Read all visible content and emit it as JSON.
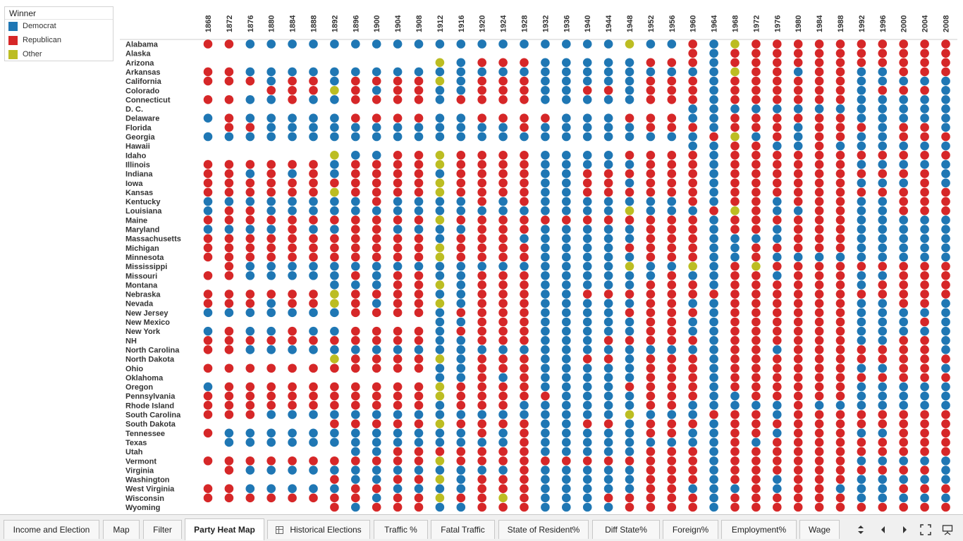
{
  "legend": {
    "title": "Winner",
    "items": [
      {
        "label": "Democrat",
        "color": "#1f77b4"
      },
      {
        "label": "Republican",
        "color": "#d62728"
      },
      {
        "label": "Other",
        "color": "#bcbd22"
      }
    ]
  },
  "chart_data": {
    "type": "heatmap",
    "years": [
      "1868",
      "1872",
      "1876",
      "1880",
      "1884",
      "1888",
      "1892",
      "1896",
      "1900",
      "1904",
      "1908",
      "1912",
      "1916",
      "1920",
      "1924",
      "1928",
      "1932",
      "1936",
      "1940",
      "1944",
      "1948",
      "1952",
      "1956",
      "1960",
      "1964",
      "1968",
      "1972",
      "1976",
      "1980",
      "1984",
      "1988",
      "1992",
      "1996",
      "2000",
      "2004",
      "2008"
    ],
    "states": [
      "Alabama",
      "Alaska",
      "Arizona",
      "Arkansas",
      "California",
      "Colorado",
      "Connecticut",
      "D. C.",
      "Delaware",
      "Florida",
      "Georgia",
      "Hawaii",
      "Idaho",
      "Illinois",
      "Indiana",
      "Iowa",
      "Kansas",
      "Kentucky",
      "Louisiana",
      "Maine",
      "Maryland",
      "Massachusetts",
      "Michigan",
      "Minnesota",
      "Mississippi",
      "Missouri",
      "Montana",
      "Nebraska",
      "Nevada",
      "New Jersey",
      "New Mexico",
      "New York",
      "NH",
      "North Carolina",
      "North Dakota",
      "Ohio",
      "Oklahoma",
      "Oregon",
      "Pennsylvania",
      "Rhode Island",
      "South Carolina",
      "South Dakota",
      "Tennessee",
      "Texas",
      "Utah",
      "Vermont",
      "Virginia",
      "Washington",
      "West Virginia",
      "Wisconsin",
      "Wyoming"
    ],
    "code": {
      "D": "Democrat",
      "R": "Republican",
      "O": "Other",
      "-": "no data"
    },
    "rows": [
      "RRDDDDDDDDDDDDDDDDDDODDRDORRRRRRRRRR",
      "-----------------------RDRRRRRRRRRRR",
      "-----------ODRRRDDDDDRRRDRRRRRRRRRRR",
      "RRDDDDDDDDDDDDDDDDDDDDDDDORRDRRDDRRR",
      "RRRDRRDRRRRODRRRDDDDDRRRDRRRRRRDDDDD",
      "---RRRORDRRDDRRRDDRRDRRRDRRRRRRDRRRD",
      "RRDDRDDRRRRDRRRRDDDDDRRRDRRRRRRDDDDD",
      "-----------------------DDDDDDDDDDDDD",
      "DRDDDDDRRRRDDRRRRDDDRRRDDRRRRRRDDDDD",
      "-RRDDDDDDDDDDDDRDDDDDRRRDRRRDRRRDRRD",
      "DDDDDDDDDDDDDDDDDDDDDDDDRODRDRRDDRRR",
      "-----------------------DDRRDDRDDDDDD",
      "------ODDRRORRRRDDDDRRRRDRRRRRRRRRRR",
      "RRRRRRDRRRRORRRRDDDDDRRRDRRRRRRDDDDD",
      "RRDRDRDRRRRDRRRRDDRRRRRRDRRRRRRRRRRD",
      "RRRRRRRRRRRORRRRDDRRDRRRDRRRRRRDDDRD",
      "RRRRRRORRRRORRRRDDRRRRRRDRRRRRRRRRRR",
      "DDDDDDDDRDDDDRDRDDDDDDDRDRRDRRRDDRRR",
      "DRRDDDDDDDDDDDDDDDDDODDDRORDDRRDDRRR",
      "RRRRRRRRRRRORRRRRRRRRRRRDRRRRRRDDDDD",
      "DDDDRDDRRDDDDRRRDDDDDRRRDRRDRRRDDDDD",
      "RRRRRRRRRRRDRRRDDDDDDRRRDDDDRRRDDDDD",
      "RRRRRRRRRRRORRRRDDDDRRRRDDRRRRRDDDDD",
      "RRRRRRRRRRRORRRRDDDDDRRRDDRDDDDDDDDD",
      "-RDDDDDDDDDDDDDDDDDDODDODRORRRRRRRRR",
      "RRDDDDDRDRRDDRRRDDDDDDRDDRRDRRRDDRRR",
      "------DDDRRODRRRDDDDDRRRDRRRRRRDRRRR",
      "RRRRRRORRRRDDRRRDDRRRRRRRRRRRRRRRRRR",
      "RRRDRRORDRRODRRRDDDDDRRDDRRRRRRDDRRD",
      "DDDDDDDRRRRDRRRRDDDDRRRRDRRRRRRDDDDD",
      "-----------DDRRRDDDDDRRDDRRRRRRDDDRD",
      "DRDDRDDRRRRDRRRRDDDDDRRDDRRRRRRDDDDD",
      "RRRRRRRRRRRDDRRRDDDRRRRRDRRRRRRDDRRD",
      "RRDDDDDDDDDDDDDDDDDDDDDDDRRDRRRRRRRD",
      "------ORRRRODRRRDDRRDRRRDRRRRRRRRRRR",
      "RRRRRRRRRRRDDRRRDDDDDRRRDRRRRRRDDRRD",
      "-----------DDRDRDDDDDRRRDRRRRRRRRRRR",
      "DRRRRRRRRRRORRRRDDDDRRRRDRRRRRRDDDDD",
      "RRRRRRRRRRRORRRRRDDDDRRRDDRRRRRDDDDD",
      "RRRRRRRRRRRDRRRDDDDDDRRDDDDDRDDDDDDD",
      "RRRDDDDDDDDDDDDDDDDDODDDRRRDRRRRRRRR",
      "------RRRRRORRRRDDRRDRRRDRRRRRRRRRRR",
      "RDDDDDDDDDDDDRDRDDDDDRRDDRRDRRRDDRRR",
      "-DDDDDDDDDDDDDDRDDDDDDDDDRDRRRRRRRRR",
      "-------DDRRRRRRRDDDDDRRRDRRRRRRRRRRR",
      "RRRRRRRRRRRORRRRRRRRRRRRDRRRRRRDDDDD",
      "-RDDDDDDDDDDDDDRDDDDDRRRDRRRRRRRRRRD",
      "------RDDRRODRRRDDDDDRRRDRRDRRRDDDDD",
      "RRDDDDDRRDDDDRRRDDDDDRRDDDRDRRDDDRRR",
      "RRRRRRRRDRRORRORDDDRRRRRDRRRRRRDDDDD",
      "------RDRRRDDRRRDDDDRRRRDRRRRRRRRRRR"
    ]
  },
  "tabs": [
    {
      "label": "Income and Election",
      "icon": ""
    },
    {
      "label": "Map",
      "icon": ""
    },
    {
      "label": "Filter",
      "icon": ""
    },
    {
      "label": "Party Heat Map",
      "icon": "",
      "active": true
    },
    {
      "label": "Historical Elections",
      "icon": "grid-icon"
    },
    {
      "label": "Traffic %",
      "icon": ""
    },
    {
      "label": "Fatal Traffic",
      "icon": ""
    },
    {
      "label": "State of Resident%",
      "icon": ""
    },
    {
      "label": "Diff State%",
      "icon": ""
    },
    {
      "label": "Foreign%",
      "icon": ""
    },
    {
      "label": "Employment%",
      "icon": ""
    },
    {
      "label": "Wage",
      "icon": ""
    }
  ],
  "nav": {
    "sheet_list": "sheet-list-icon",
    "prev": "prev-icon",
    "next": "next-icon",
    "fullscreen": "fullscreen-icon",
    "presentation": "presentation-icon"
  }
}
